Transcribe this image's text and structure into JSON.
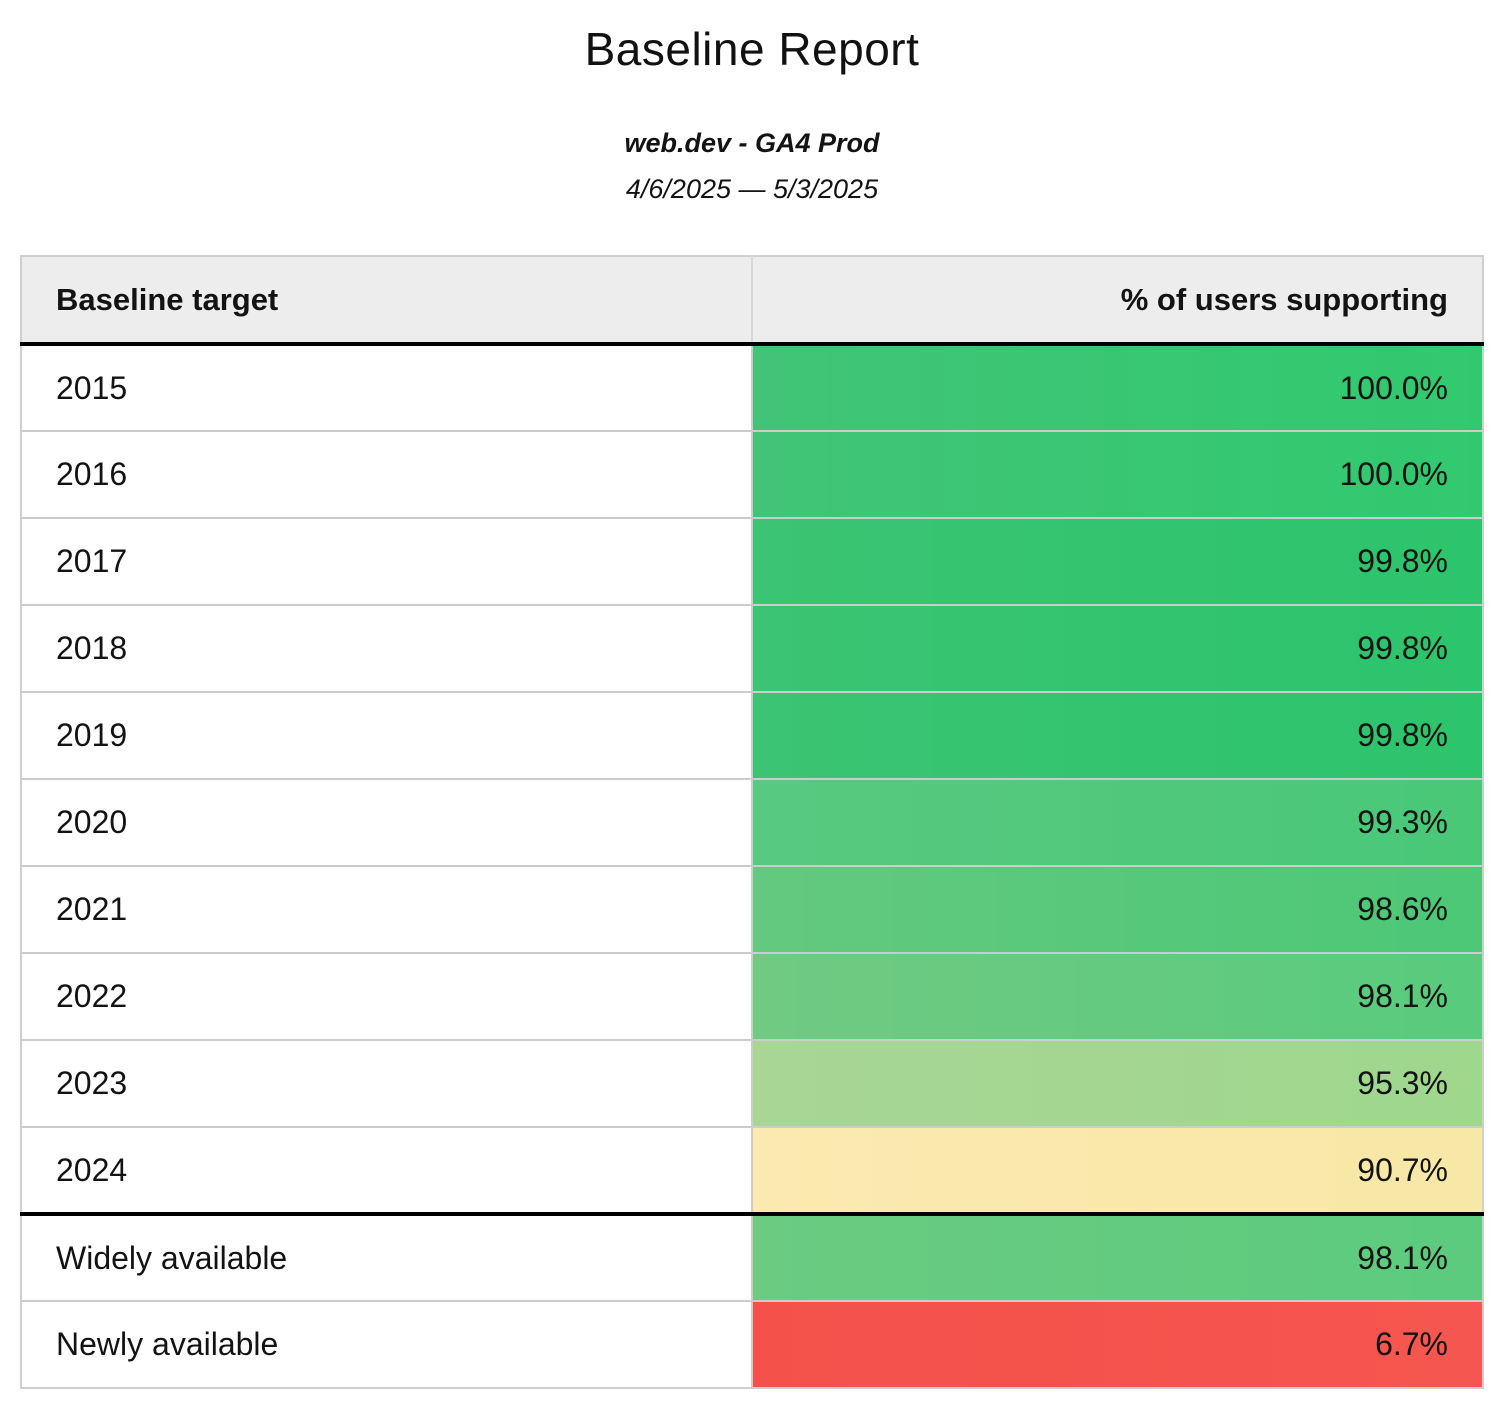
{
  "report": {
    "title": "Baseline Report",
    "subtitle": "web.dev - GA4 Prod",
    "date_range": "4/6/2025 — 5/3/2025"
  },
  "table": {
    "columns": [
      {
        "label": "Baseline target",
        "align": "left"
      },
      {
        "label": "% of users supporting",
        "align": "right"
      }
    ],
    "rows": [
      {
        "target": "2015",
        "value": "100.0%",
        "color_left": "#41c477",
        "color_right": "#31c96f",
        "section_start": false
      },
      {
        "target": "2016",
        "value": "100.0%",
        "color_left": "#41c477",
        "color_right": "#31c96f",
        "section_start": false
      },
      {
        "target": "2017",
        "value": "99.8%",
        "color_left": "#3bc473",
        "color_right": "#2cc46c",
        "section_start": false
      },
      {
        "target": "2018",
        "value": "99.8%",
        "color_left": "#3bc473",
        "color_right": "#2cc46c",
        "section_start": false
      },
      {
        "target": "2019",
        "value": "99.8%",
        "color_left": "#3bc473",
        "color_right": "#2cc46c",
        "section_start": false
      },
      {
        "target": "2020",
        "value": "99.3%",
        "color_left": "#58c980",
        "color_right": "#49c878",
        "section_start": false
      },
      {
        "target": "2021",
        "value": "98.6%",
        "color_left": "#63c97e",
        "color_right": "#4cc877",
        "section_start": false
      },
      {
        "target": "2022",
        "value": "98.1%",
        "color_left": "#70ca82",
        "color_right": "#58cb7c",
        "section_start": false
      },
      {
        "target": "2023",
        "value": "95.3%",
        "color_left": "#a8d695",
        "color_right": "#9fd78d",
        "section_start": false
      },
      {
        "target": "2024",
        "value": "90.7%",
        "color_left": "#fbe9af",
        "color_right": "#f8e8a7",
        "section_start": false
      },
      {
        "target": "Widely available",
        "value": "98.1%",
        "color_left": "#6acb81",
        "color_right": "#5ccb7d",
        "section_start": true
      },
      {
        "target": "Newly available",
        "value": "6.7%",
        "color_left": "#f4514b",
        "color_right": "#f5564f",
        "section_start": false
      }
    ],
    "style_colors": {
      "header_background": "#ededed",
      "grid_border": "#cccccc",
      "heavy_border": "#000000",
      "text": "#131313"
    }
  }
}
